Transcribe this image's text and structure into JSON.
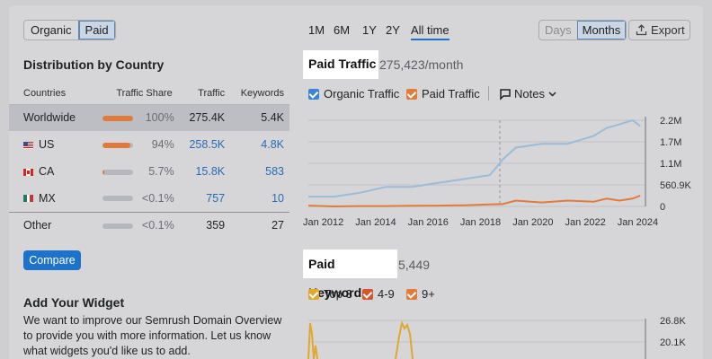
{
  "toggle": {
    "organic": "Organic",
    "paid": "Paid"
  },
  "distribution": {
    "title": "Distribution by Country",
    "headers": [
      "Countries",
      "Traffic Share",
      "Traffic",
      "Keywords"
    ],
    "rows": [
      {
        "country": "Worldwide",
        "share": "100%",
        "share_fraction": 1.0,
        "traffic": "275.4K",
        "keywords": "5.4K"
      },
      {
        "country": "US",
        "share": "94%",
        "share_fraction": 0.94,
        "traffic": "258.5K",
        "keywords": "4.8K"
      },
      {
        "country": "CA",
        "share": "5.7%",
        "share_fraction": 0.057,
        "traffic": "15.8K",
        "keywords": "583"
      },
      {
        "country": "MX",
        "share": "<0.1%",
        "share_fraction": 0.0,
        "traffic": "757",
        "keywords": "10"
      },
      {
        "country": "Other",
        "share": "<0.1%",
        "share_fraction": 0.0,
        "traffic": "359",
        "keywords": "27"
      }
    ]
  },
  "compare_label": "Compare",
  "widget": {
    "title": "Add Your Widget",
    "text": "We want to improve our Semrush Domain Overview to provide you with more information. Let us know what widgets you'd like us to add."
  },
  "ranges": [
    "1M",
    "6M",
    "1Y",
    "2Y",
    "All time"
  ],
  "granularity": {
    "days": "Days",
    "months": "Months"
  },
  "export_label": "Export",
  "paid_traffic": {
    "title": "Paid Traffic",
    "value": "275,423/month"
  },
  "traffic_legend": {
    "organic": "Organic Traffic",
    "paid": "Paid Traffic",
    "notes": "Notes"
  },
  "paid_keywords": {
    "title": "Paid Keywords",
    "value": "5,449"
  },
  "kw_legend": {
    "top3": "Top 3",
    "r49": "4-9",
    "r9p": "9+"
  },
  "colors": {
    "organic": "#9bbbd6",
    "paid": "#e07b3b",
    "top3": "#e0a82e",
    "accent": "#1f72c9"
  },
  "chart_data": [
    {
      "type": "line",
      "title": "Paid Traffic",
      "x_ticks": [
        "Jan 2012",
        "Jan 2014",
        "Jan 2016",
        "Jan 2018",
        "Jan 2020",
        "Jan 2022",
        "Jan 2024"
      ],
      "y_ticks": [
        "2.2M",
        "1.7M",
        "1.1M",
        "560.9K",
        "0"
      ],
      "ylim": [
        0,
        2200000
      ],
      "x": [
        2011.5,
        2012.5,
        2013.5,
        2014.5,
        2015.5,
        2016.5,
        2017.5,
        2018.5,
        2019.0,
        2019.5,
        2020.5,
        2021.5,
        2022.5,
        2023.0,
        2023.5,
        2024.0,
        2024.3
      ],
      "series": [
        {
          "name": "Organic Traffic",
          "values": [
            250000,
            250000,
            350000,
            500000,
            500000,
            600000,
            700000,
            800000,
            1200000,
            1500000,
            1600000,
            1600000,
            1800000,
            2000000,
            2100000,
            2200000,
            2050000
          ]
        },
        {
          "name": "Paid Traffic",
          "values": [
            20000,
            0,
            10000,
            10000,
            15000,
            20000,
            30000,
            50000,
            60000,
            150000,
            100000,
            150000,
            120000,
            200000,
            150000,
            200000,
            275000
          ]
        }
      ]
    },
    {
      "type": "line",
      "title": "Paid Keywords",
      "y_ticks": [
        "26.8K",
        "20.1K"
      ],
      "series": [
        {
          "name": "Top 3"
        },
        {
          "name": "4-9"
        },
        {
          "name": "9+"
        }
      ]
    }
  ]
}
